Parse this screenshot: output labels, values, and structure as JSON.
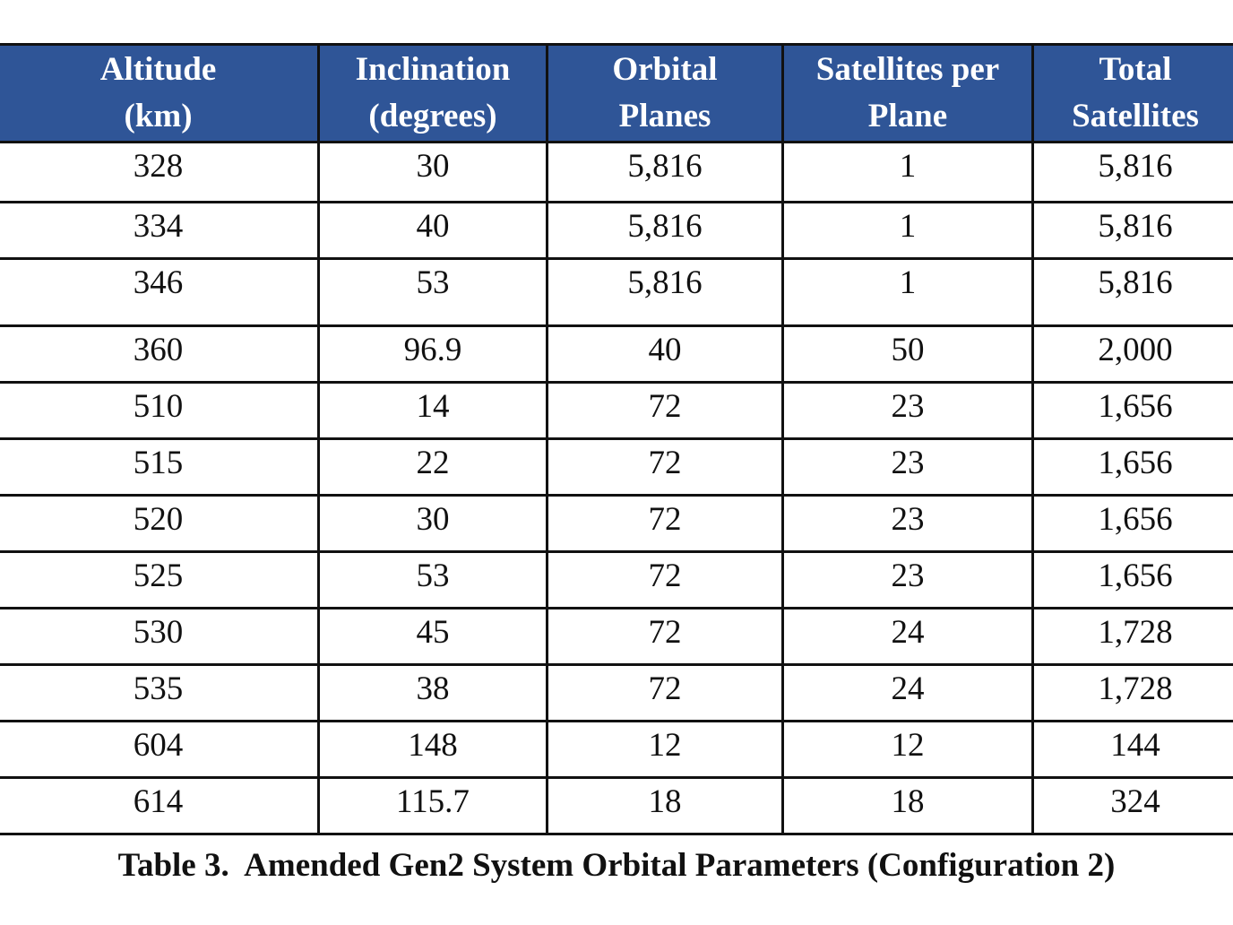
{
  "table": {
    "headers": [
      [
        "Altitude",
        "(km)"
      ],
      [
        "Inclination",
        "(degrees)"
      ],
      [
        "Orbital",
        "Planes"
      ],
      [
        "Satellites per",
        "Plane"
      ],
      [
        "Total",
        "Satellites"
      ]
    ],
    "rows": [
      [
        "328",
        "30",
        "5,816",
        "1",
        "5,816"
      ],
      [
        "334",
        "40",
        "5,816",
        "1",
        "5,816"
      ],
      [
        "346",
        "53",
        "5,816",
        "1",
        "5,816"
      ],
      [
        "360",
        "96.9",
        "40",
        "50",
        "2,000"
      ],
      [
        "510",
        "14",
        "72",
        "23",
        "1,656"
      ],
      [
        "515",
        "22",
        "72",
        "23",
        "1,656"
      ],
      [
        "520",
        "30",
        "72",
        "23",
        "1,656"
      ],
      [
        "525",
        "53",
        "72",
        "23",
        "1,656"
      ],
      [
        "530",
        "45",
        "72",
        "24",
        "1,728"
      ],
      [
        "535",
        "38",
        "72",
        "24",
        "1,728"
      ],
      [
        "604",
        "148",
        "12",
        "12",
        "144"
      ],
      [
        "614",
        "115.7",
        "18",
        "18",
        "324"
      ]
    ]
  },
  "caption": "Table 3.  Amended Gen2 System Orbital Parameters (Configuration 2)"
}
